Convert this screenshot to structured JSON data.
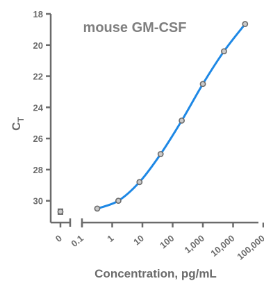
{
  "chart_data": {
    "type": "line",
    "title": "mouse GM-CSF",
    "xlabel": "Concentration, pg/mL",
    "ylabel": "C",
    "ylabel_subscript": "T",
    "x_scale": "log",
    "y_inverted": true,
    "ylim": [
      31.4,
      18
    ],
    "y_ticks": [
      18,
      20,
      22,
      24,
      26,
      28,
      30
    ],
    "x_ticks": [
      {
        "label": "0",
        "value": 0
      },
      {
        "label": "0.1",
        "value": 0.1
      },
      {
        "label": "1",
        "value": 1
      },
      {
        "label": "10",
        "value": 10
      },
      {
        "label": "100",
        "value": 100
      },
      {
        "label": "1,000",
        "value": 1000
      },
      {
        "label": "10,000",
        "value": 10000
      },
      {
        "label": "100,000",
        "value": 100000
      }
    ],
    "zero_point": {
      "x": 0,
      "y": 30.7,
      "error": 0.15
    },
    "series": [
      {
        "x": [
          0.32,
          1.6,
          8,
          40,
          200,
          1000,
          5000,
          25000
        ],
        "y": [
          30.5,
          30.0,
          28.8,
          27.0,
          24.85,
          22.5,
          20.4,
          18.65
        ]
      }
    ],
    "grid": false,
    "colors": {
      "curve": "#1e88e5",
      "axis": "#6b6b6b",
      "marker": "#c9c9c9"
    }
  }
}
